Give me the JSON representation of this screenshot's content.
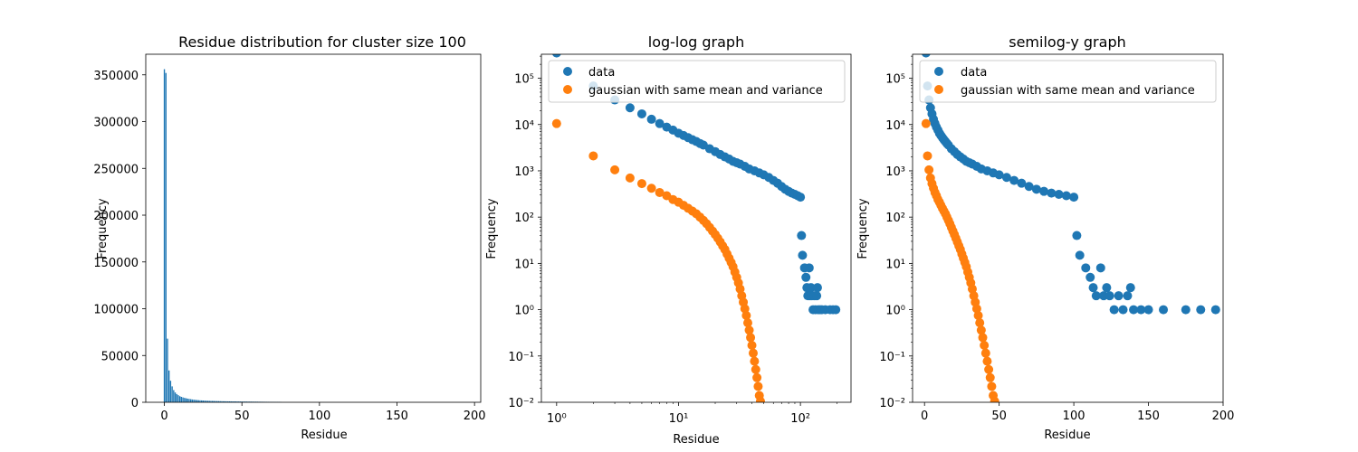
{
  "colors": {
    "blue": "#1f77b4",
    "orange": "#ff7f0e"
  },
  "chart_data": [
    {
      "type": "bar",
      "title": "Residue distribution for cluster size 100",
      "xlabel": "Residue",
      "ylabel": "Frequency",
      "xlim": [
        -12,
        204
      ],
      "ylim": [
        0,
        372000
      ],
      "xticks": [
        0,
        50,
        100,
        150,
        200
      ],
      "yticks": [
        0,
        50000,
        100000,
        150000,
        200000,
        250000,
        300000,
        350000
      ],
      "x": [
        0,
        1,
        2,
        3,
        4,
        5,
        6,
        7,
        8,
        9,
        10,
        11,
        12,
        13,
        14,
        15,
        16,
        17,
        18,
        19,
        20,
        21,
        22,
        23,
        24,
        25,
        26,
        27,
        28,
        29,
        30,
        31,
        32,
        33,
        34,
        35,
        36,
        37,
        38,
        39,
        40,
        41,
        42,
        43,
        44,
        45,
        46,
        47,
        48,
        49,
        50,
        51,
        52,
        53,
        54,
        55,
        56,
        57,
        58,
        59,
        60,
        61,
        62,
        63,
        64,
        65,
        66,
        67,
        68,
        69,
        70,
        71,
        72,
        73,
        74,
        75
      ],
      "values": [
        356000,
        352000,
        68000,
        34000,
        23000,
        17000,
        13000,
        10500,
        8800,
        7600,
        6500,
        5800,
        5200,
        4700,
        4300,
        3900,
        3600,
        3300,
        3000,
        2800,
        2600,
        2400,
        2250,
        2100,
        2000,
        1900,
        1800,
        1700,
        1600,
        1550,
        1500,
        1450,
        1400,
        1350,
        1300,
        1250,
        1200,
        1150,
        1100,
        1080,
        1050,
        1020,
        1000,
        980,
        950,
        920,
        900,
        880,
        860,
        840,
        820,
        800,
        780,
        760,
        740,
        720,
        700,
        680,
        660,
        640,
        620,
        600,
        580,
        560,
        540,
        520,
        500,
        480,
        460,
        440,
        420,
        400,
        380,
        360,
        330,
        300
      ]
    },
    {
      "type": "scatter",
      "title": "log-log graph",
      "xlabel": "Residue",
      "ylabel": "Frequency",
      "xscale": "log",
      "yscale": "log",
      "xlim": [
        0.75,
        260
      ],
      "ylim": [
        0.01,
        330000
      ],
      "legend": "top-right",
      "series": [
        {
          "name": "data",
          "color": "#1f77b4",
          "points": [
            [
              1,
              352000
            ],
            [
              2,
              68000
            ],
            [
              3,
              34000
            ],
            [
              4,
              23000
            ],
            [
              5,
              17000
            ],
            [
              6,
              13000
            ],
            [
              7,
              10500
            ],
            [
              8,
              8800
            ],
            [
              9,
              7600
            ],
            [
              10,
              6500
            ],
            [
              11,
              5800
            ],
            [
              12,
              5200
            ],
            [
              13,
              4700
            ],
            [
              14,
              4300
            ],
            [
              15,
              3900
            ],
            [
              16,
              3600
            ],
            [
              18,
              3000
            ],
            [
              20,
              2600
            ],
            [
              22,
              2250
            ],
            [
              24,
              2000
            ],
            [
              26,
              1800
            ],
            [
              28,
              1600
            ],
            [
              30,
              1500
            ],
            [
              32,
              1400
            ],
            [
              35,
              1250
            ],
            [
              38,
              1100
            ],
            [
              42,
              1000
            ],
            [
              46,
              900
            ],
            [
              50,
              820
            ],
            [
              55,
              720
            ],
            [
              60,
              620
            ],
            [
              65,
              540
            ],
            [
              70,
              460
            ],
            [
              75,
              400
            ],
            [
              80,
              360
            ],
            [
              85,
              330
            ],
            [
              90,
              310
            ],
            [
              95,
              290
            ],
            [
              100,
              270
            ],
            [
              102,
              40
            ],
            [
              104,
              15
            ],
            [
              108,
              8
            ],
            [
              111,
              5
            ],
            [
              113,
              3
            ],
            [
              115,
              2
            ],
            [
              118,
              8
            ],
            [
              120,
              2
            ],
            [
              122,
              3
            ],
            [
              124,
              2
            ],
            [
              127,
              1
            ],
            [
              130,
              2
            ],
            [
              133,
              1
            ],
            [
              136,
              2
            ],
            [
              138,
              3
            ],
            [
              140,
              1
            ],
            [
              145,
              1
            ],
            [
              150,
              1
            ],
            [
              160,
              1
            ],
            [
              175,
              1
            ],
            [
              185,
              1
            ],
            [
              195,
              1
            ]
          ]
        },
        {
          "name": "gaussian with same mean and variance",
          "color": "#ff7f0e",
          "points": [
            [
              1,
              10500
            ],
            [
              2,
              2100
            ],
            [
              3,
              1050
            ],
            [
              4,
              700
            ],
            [
              5,
              530
            ],
            [
              6,
              420
            ],
            [
              7,
              340
            ],
            [
              8,
              290
            ],
            [
              9,
              240
            ],
            [
              10,
              210
            ],
            [
              11,
              180
            ],
            [
              12,
              155
            ],
            [
              13,
              135
            ],
            [
              14,
              118
            ],
            [
              15,
              100
            ],
            [
              16,
              85
            ],
            [
              17,
              72
            ],
            [
              18,
              60
            ],
            [
              19,
              50
            ],
            [
              20,
              42
            ],
            [
              21,
              35
            ],
            [
              22,
              29
            ],
            [
              23,
              24
            ],
            [
              24,
              20
            ],
            [
              25,
              16
            ],
            [
              26,
              13
            ],
            [
              27,
              10.5
            ],
            [
              28,
              8.5
            ],
            [
              29,
              6.5
            ],
            [
              30,
              5
            ],
            [
              31,
              3.8
            ],
            [
              32,
              2.8
            ],
            [
              33,
              2
            ],
            [
              34,
              1.45
            ],
            [
              35,
              1.05
            ],
            [
              36,
              0.75
            ],
            [
              37,
              0.52
            ],
            [
              38,
              0.36
            ],
            [
              39,
              0.25
            ],
            [
              40,
              0.17
            ],
            [
              41,
              0.115
            ],
            [
              42,
              0.077
            ],
            [
              43,
              0.051
            ],
            [
              44,
              0.034
            ],
            [
              45,
              0.022
            ],
            [
              46,
              0.014
            ],
            [
              47,
              0.0105
            ]
          ]
        }
      ]
    },
    {
      "type": "scatter",
      "title": "semilog-y graph",
      "xlabel": "Residue",
      "ylabel": "Frequency",
      "yscale": "log",
      "xlim": [
        -8,
        200
      ],
      "ylim": [
        0.01,
        330000
      ],
      "xticks": [
        0,
        50,
        100,
        150,
        200
      ],
      "legend": "top-right",
      "series": [
        {
          "name": "data",
          "color": "#1f77b4",
          "points": [
            [
              1,
              352000
            ],
            [
              2,
              68000
            ],
            [
              3,
              34000
            ],
            [
              4,
              23000
            ],
            [
              5,
              17000
            ],
            [
              6,
              13000
            ],
            [
              7,
              10500
            ],
            [
              8,
              8800
            ],
            [
              9,
              7600
            ],
            [
              10,
              6500
            ],
            [
              11,
              5800
            ],
            [
              12,
              5200
            ],
            [
              13,
              4700
            ],
            [
              14,
              4300
            ],
            [
              15,
              3900
            ],
            [
              16,
              3600
            ],
            [
              18,
              3000
            ],
            [
              20,
              2600
            ],
            [
              22,
              2250
            ],
            [
              24,
              2000
            ],
            [
              26,
              1800
            ],
            [
              28,
              1600
            ],
            [
              30,
              1500
            ],
            [
              32,
              1400
            ],
            [
              35,
              1250
            ],
            [
              38,
              1100
            ],
            [
              42,
              1000
            ],
            [
              46,
              900
            ],
            [
              50,
              820
            ],
            [
              55,
              720
            ],
            [
              60,
              620
            ],
            [
              65,
              540
            ],
            [
              70,
              460
            ],
            [
              75,
              400
            ],
            [
              80,
              360
            ],
            [
              85,
              330
            ],
            [
              90,
              310
            ],
            [
              95,
              290
            ],
            [
              100,
              270
            ],
            [
              102,
              40
            ],
            [
              104,
              15
            ],
            [
              108,
              8
            ],
            [
              111,
              5
            ],
            [
              113,
              3
            ],
            [
              115,
              2
            ],
            [
              118,
              8
            ],
            [
              120,
              2
            ],
            [
              122,
              3
            ],
            [
              124,
              2
            ],
            [
              127,
              1
            ],
            [
              130,
              2
            ],
            [
              133,
              1
            ],
            [
              136,
              2
            ],
            [
              138,
              3
            ],
            [
              140,
              1
            ],
            [
              145,
              1
            ],
            [
              150,
              1
            ],
            [
              160,
              1
            ],
            [
              175,
              1
            ],
            [
              185,
              1
            ],
            [
              195,
              1
            ]
          ]
        },
        {
          "name": "gaussian with same mean and variance",
          "color": "#ff7f0e",
          "points": [
            [
              1,
              10500
            ],
            [
              2,
              2100
            ],
            [
              3,
              1050
            ],
            [
              4,
              700
            ],
            [
              5,
              530
            ],
            [
              6,
              420
            ],
            [
              7,
              340
            ],
            [
              8,
              290
            ],
            [
              9,
              240
            ],
            [
              10,
              210
            ],
            [
              11,
              180
            ],
            [
              12,
              155
            ],
            [
              13,
              135
            ],
            [
              14,
              118
            ],
            [
              15,
              100
            ],
            [
              16,
              85
            ],
            [
              17,
              72
            ],
            [
              18,
              60
            ],
            [
              19,
              50
            ],
            [
              20,
              42
            ],
            [
              21,
              35
            ],
            [
              22,
              29
            ],
            [
              23,
              24
            ],
            [
              24,
              20
            ],
            [
              25,
              16
            ],
            [
              26,
              13
            ],
            [
              27,
              10.5
            ],
            [
              28,
              8.5
            ],
            [
              29,
              6.5
            ],
            [
              30,
              5
            ],
            [
              31,
              3.8
            ],
            [
              32,
              2.8
            ],
            [
              33,
              2
            ],
            [
              34,
              1.45
            ],
            [
              35,
              1.05
            ],
            [
              36,
              0.75
            ],
            [
              37,
              0.52
            ],
            [
              38,
              0.36
            ],
            [
              39,
              0.25
            ],
            [
              40,
              0.17
            ],
            [
              41,
              0.115
            ],
            [
              42,
              0.077
            ],
            [
              43,
              0.051
            ],
            [
              44,
              0.034
            ],
            [
              45,
              0.022
            ],
            [
              46,
              0.014
            ],
            [
              47,
              0.0105
            ]
          ]
        }
      ]
    }
  ]
}
